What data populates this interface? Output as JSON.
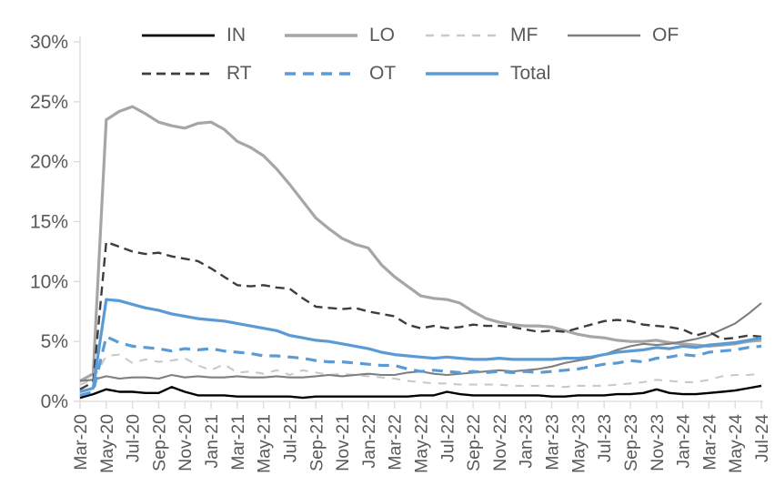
{
  "chart_data": {
    "type": "line",
    "title": "",
    "xlabel": "",
    "ylabel": "",
    "ylim": [
      0,
      30
    ],
    "grid": false,
    "legend_position": "top",
    "axis_color": "#D9D9D9",
    "label_color": "#595959",
    "y_ticks": [
      0,
      5,
      10,
      15,
      20,
      25,
      30
    ],
    "y_tick_labels": [
      "0%",
      "5%",
      "10%",
      "15%",
      "20%",
      "25%",
      "30%"
    ],
    "x_tick_step": 2,
    "x": [
      "Mar-20",
      "Apr-20",
      "May-20",
      "Jun-20",
      "Jul-20",
      "Aug-20",
      "Sep-20",
      "Oct-20",
      "Nov-20",
      "Dec-20",
      "Jan-21",
      "Feb-21",
      "Mar-21",
      "Apr-21",
      "May-21",
      "Jun-21",
      "Jul-21",
      "Aug-21",
      "Sep-21",
      "Oct-21",
      "Nov-21",
      "Dec-21",
      "Jan-22",
      "Feb-22",
      "Mar-22",
      "Apr-22",
      "May-22",
      "Jun-22",
      "Jul-22",
      "Aug-22",
      "Sep-22",
      "Oct-22",
      "Nov-22",
      "Dec-22",
      "Jan-23",
      "Feb-23",
      "Mar-23",
      "Apr-23",
      "May-23",
      "Jun-23",
      "Jul-23",
      "Aug-23",
      "Sep-23",
      "Oct-23",
      "Nov-23",
      "Dec-23",
      "Jan-24",
      "Feb-24",
      "Mar-24",
      "Apr-24",
      "May-24",
      "Jun-24",
      "Jul-24"
    ],
    "series": [
      {
        "name": "IN",
        "color": "#000000",
        "style": "solid",
        "width": 2.4,
        "dash": "",
        "values": [
          0.3,
          0.6,
          1.0,
          0.8,
          0.8,
          0.7,
          0.7,
          1.2,
          0.8,
          0.5,
          0.5,
          0.5,
          0.4,
          0.4,
          0.4,
          0.4,
          0.4,
          0.3,
          0.4,
          0.4,
          0.4,
          0.4,
          0.4,
          0.4,
          0.4,
          0.4,
          0.5,
          0.5,
          0.8,
          0.6,
          0.5,
          0.5,
          0.5,
          0.5,
          0.5,
          0.5,
          0.4,
          0.4,
          0.5,
          0.5,
          0.5,
          0.6,
          0.6,
          0.7,
          1.0,
          0.7,
          0.6,
          0.6,
          0.7,
          0.8,
          0.9,
          1.1,
          1.3
        ]
      },
      {
        "name": "LO",
        "color": "#A6A6A6",
        "style": "solid",
        "width": 3.2,
        "dash": "",
        "values": [
          1.7,
          2.3,
          23.5,
          24.2,
          24.6,
          24.0,
          23.3,
          23.0,
          22.8,
          23.2,
          23.3,
          22.7,
          21.7,
          21.2,
          20.5,
          19.4,
          18.1,
          16.7,
          15.3,
          14.4,
          13.6,
          13.1,
          12.8,
          11.4,
          10.4,
          9.6,
          8.8,
          8.6,
          8.5,
          8.2,
          7.5,
          6.9,
          6.6,
          6.4,
          6.3,
          6.3,
          6.2,
          5.9,
          5.6,
          5.4,
          5.3,
          5.1,
          5.0,
          5.0,
          5.1,
          4.9,
          4.8,
          4.7,
          4.6,
          4.7,
          4.8,
          5.0,
          5.1
        ]
      },
      {
        "name": "MF",
        "color": "#C9C9C9",
        "style": "dashed",
        "width": 2.1,
        "dash": "9 8",
        "values": [
          1.4,
          1.8,
          3.8,
          3.9,
          3.2,
          3.5,
          3.3,
          3.4,
          3.6,
          3.0,
          2.6,
          3.1,
          2.4,
          2.5,
          2.3,
          2.6,
          2.2,
          2.6,
          2.4,
          2.2,
          2.3,
          2.2,
          2.1,
          2.0,
          1.9,
          1.7,
          1.6,
          1.5,
          1.5,
          1.4,
          1.4,
          1.4,
          1.4,
          1.3,
          1.3,
          1.3,
          1.3,
          1.2,
          1.3,
          1.3,
          1.3,
          1.4,
          1.5,
          1.6,
          1.8,
          1.7,
          1.6,
          1.6,
          1.8,
          2.1,
          2.2,
          2.2,
          2.3
        ]
      },
      {
        "name": "OF",
        "color": "#7F7F7F",
        "style": "solid",
        "width": 2.1,
        "dash": "",
        "values": [
          1.7,
          1.8,
          2.1,
          1.9,
          2.0,
          2.0,
          1.9,
          2.2,
          2.0,
          2.1,
          2.0,
          2.0,
          2.1,
          2.0,
          2.0,
          2.1,
          2.0,
          2.0,
          2.1,
          2.2,
          2.1,
          2.2,
          2.3,
          2.2,
          2.2,
          2.4,
          2.5,
          2.3,
          2.2,
          2.3,
          2.4,
          2.5,
          2.6,
          2.5,
          2.6,
          2.7,
          2.9,
          3.2,
          3.4,
          3.6,
          3.9,
          4.3,
          4.6,
          4.8,
          4.7,
          4.8,
          5.0,
          5.2,
          5.5,
          6.0,
          6.5,
          7.3,
          8.2
        ]
      },
      {
        "name": "RT",
        "color": "#3D3D3D",
        "style": "dashed",
        "width": 2.4,
        "dash": "10 6",
        "values": [
          1.0,
          1.6,
          13.3,
          12.9,
          12.5,
          12.3,
          12.4,
          12.1,
          11.9,
          11.7,
          11.1,
          10.4,
          9.7,
          9.6,
          9.7,
          9.5,
          9.4,
          8.6,
          7.9,
          7.8,
          7.7,
          7.8,
          7.5,
          7.3,
          7.1,
          6.4,
          6.1,
          6.3,
          6.1,
          6.2,
          6.4,
          6.3,
          6.3,
          6.2,
          6.0,
          5.8,
          5.9,
          5.8,
          6.1,
          6.4,
          6.7,
          6.8,
          6.7,
          6.4,
          6.3,
          6.2,
          6.0,
          5.5,
          5.8,
          5.2,
          5.3,
          5.5,
          5.4
        ]
      },
      {
        "name": "OT",
        "color": "#5B9BD5",
        "style": "dashed",
        "width": 3.2,
        "dash": "12 8",
        "values": [
          0.5,
          0.8,
          5.4,
          4.9,
          4.6,
          4.5,
          4.4,
          4.2,
          4.4,
          4.3,
          4.4,
          4.2,
          4.1,
          4.0,
          3.8,
          3.8,
          3.7,
          3.6,
          3.4,
          3.3,
          3.3,
          3.2,
          3.1,
          3.0,
          3.0,
          2.7,
          2.5,
          2.6,
          2.5,
          2.4,
          2.5,
          2.4,
          2.5,
          2.4,
          2.5,
          2.4,
          2.5,
          2.6,
          2.7,
          2.9,
          3.1,
          3.2,
          3.4,
          3.3,
          3.6,
          3.7,
          3.9,
          3.8,
          4.1,
          4.2,
          4.3,
          4.5,
          4.6
        ]
      },
      {
        "name": "Total",
        "color": "#5B9BD5",
        "style": "solid",
        "width": 3.2,
        "dash": "",
        "values": [
          0.8,
          1.1,
          8.5,
          8.4,
          8.1,
          7.8,
          7.6,
          7.3,
          7.1,
          6.9,
          6.8,
          6.7,
          6.5,
          6.3,
          6.1,
          5.9,
          5.5,
          5.3,
          5.1,
          5.0,
          4.8,
          4.6,
          4.4,
          4.1,
          3.9,
          3.8,
          3.7,
          3.6,
          3.7,
          3.6,
          3.5,
          3.5,
          3.6,
          3.5,
          3.5,
          3.5,
          3.5,
          3.6,
          3.6,
          3.7,
          3.9,
          4.1,
          4.2,
          4.3,
          4.5,
          4.4,
          4.6,
          4.5,
          4.7,
          4.8,
          4.9,
          5.1,
          5.3
        ]
      }
    ]
  },
  "legend": {
    "rows": [
      [
        "IN",
        "LO",
        "MF",
        "OF"
      ],
      [
        "RT",
        "OT",
        "Total"
      ]
    ]
  }
}
